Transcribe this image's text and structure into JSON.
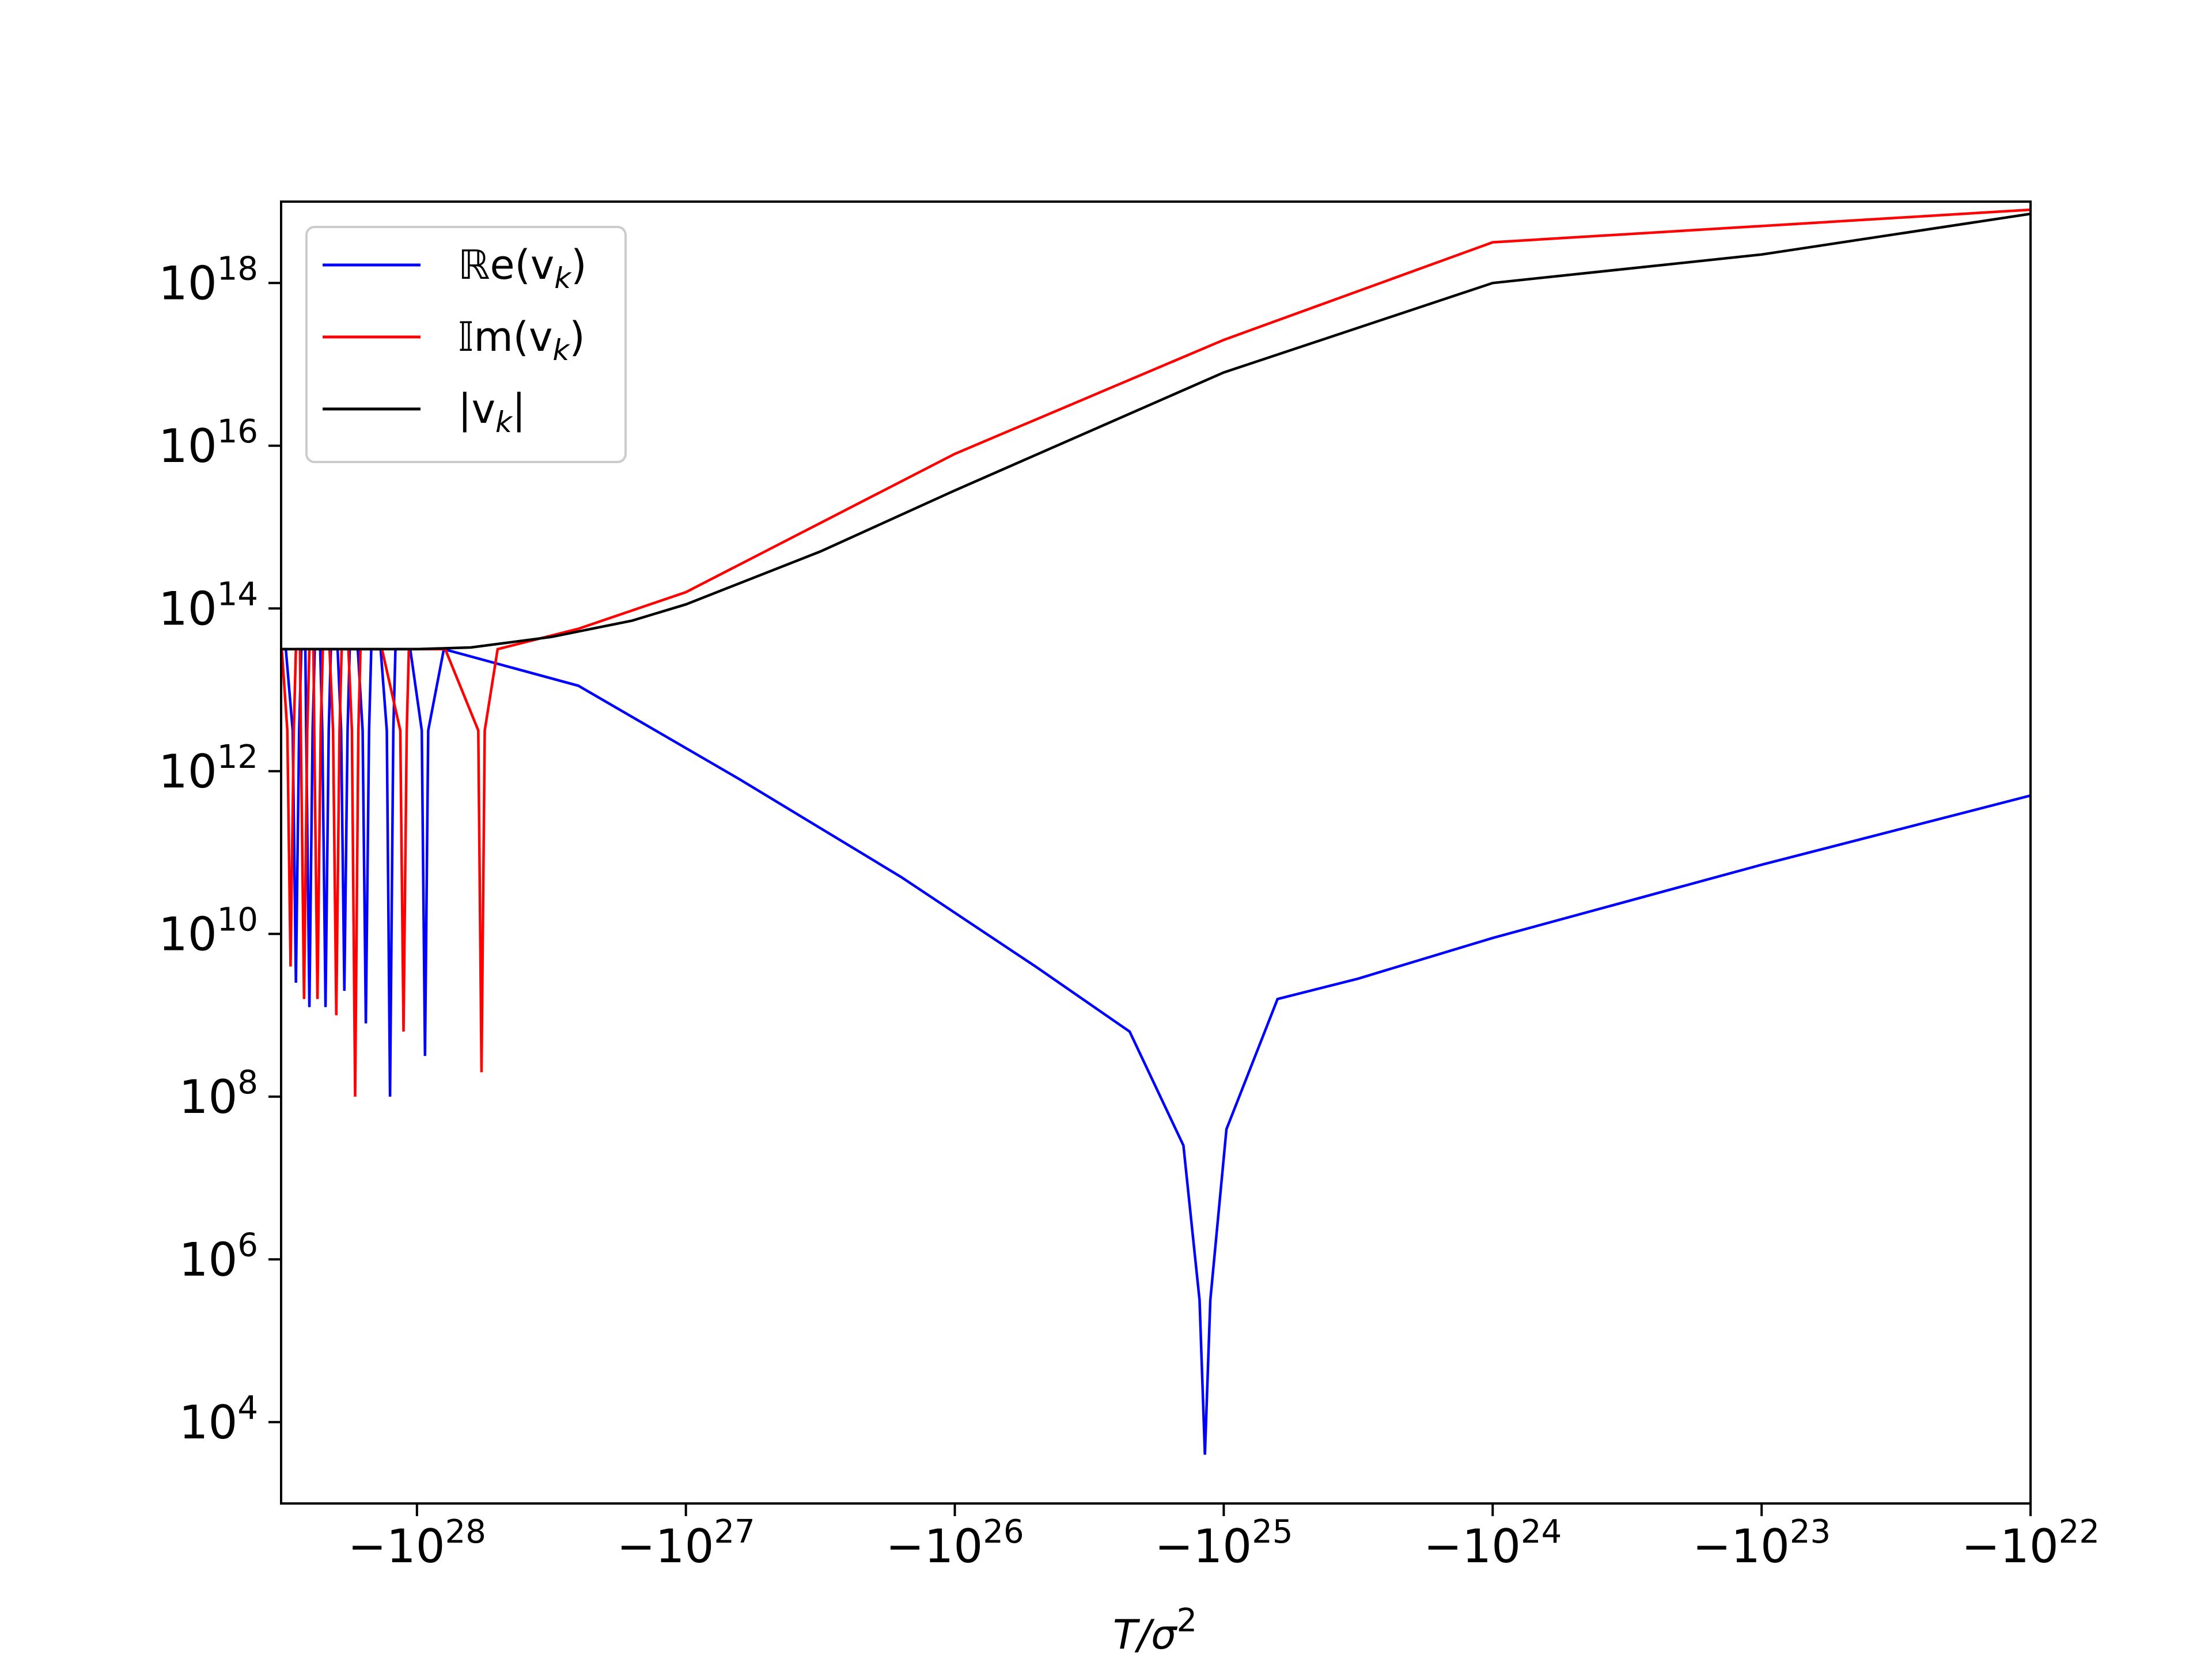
{
  "chart_data": {
    "type": "line",
    "xlabel": "T/σ²",
    "ylabel": "",
    "x_scale": "log",
    "x_axis_note": "T is negative; axis shows -10^n, reversed log magnitude",
    "x_range_abs": [
      3.2e+28,
      1e+22
    ],
    "y_scale": "log",
    "y_range": [
      1000.0,
      1e+19
    ],
    "grid": false,
    "legend_position": "upper left",
    "x_ticks": [
      {
        "exp": 28,
        "base": "−10",
        "sup": "28"
      },
      {
        "exp": 27,
        "base": "−10",
        "sup": "27"
      },
      {
        "exp": 26,
        "base": "−10",
        "sup": "26"
      },
      {
        "exp": 25,
        "base": "−10",
        "sup": "25"
      },
      {
        "exp": 24,
        "base": "−10",
        "sup": "24"
      },
      {
        "exp": 23,
        "base": "−10",
        "sup": "23"
      },
      {
        "exp": 22,
        "base": "−10",
        "sup": "22"
      }
    ],
    "y_ticks": [
      {
        "exp": 4,
        "base": "10",
        "sup": "4"
      },
      {
        "exp": 6,
        "base": "10",
        "sup": "6"
      },
      {
        "exp": 8,
        "base": "10",
        "sup": "8"
      },
      {
        "exp": 10,
        "base": "10",
        "sup": "10"
      },
      {
        "exp": 12,
        "base": "10",
        "sup": "12"
      },
      {
        "exp": 14,
        "base": "10",
        "sup": "14"
      },
      {
        "exp": 16,
        "base": "10",
        "sup": "16"
      },
      {
        "exp": 18,
        "base": "10",
        "sup": "18"
      }
    ],
    "series": [
      {
        "name": "ℝe(v_k)",
        "label_main": "ℝe(v",
        "label_sub": "k",
        "label_close": ")",
        "color": "#0000ff",
        "plateau_log10": 13.5,
        "oscillation_zeros_log10_abs_T": [
          28.45,
          28.4,
          28.34,
          28.27,
          28.19,
          28.1,
          27.97
        ],
        "zero_min_log10_y": [
          9.4,
          9.1,
          9.1,
          9.3,
          8.9,
          8.0,
          8.5
        ],
        "decay": [
          [
            27.9,
            13.5
          ],
          [
            27.4,
            13.05
          ],
          [
            26.8,
            11.9
          ],
          [
            26.2,
            10.7
          ],
          [
            25.7,
            9.6
          ],
          [
            25.35,
            8.8
          ]
        ],
        "zero_crossing_log10_abs_T": 25.07,
        "zero_crossing_log10_y": 3.6,
        "growth": [
          [
            24.8,
            9.2
          ],
          [
            24.5,
            9.45
          ],
          [
            24.0,
            9.95
          ],
          [
            23.0,
            10.85
          ],
          [
            22.0,
            11.7
          ]
        ]
      },
      {
        "name": "𝕀m(v_k)",
        "label_main": "𝕀m(v",
        "label_sub": "k",
        "label_close": ")",
        "color": "#ff0000",
        "plateau_log10": 13.5,
        "oscillation_zeros_log10_abs_T": [
          28.47,
          28.42,
          28.37,
          28.3,
          28.23,
          28.05,
          27.76
        ],
        "zero_min_log10_y": [
          9.6,
          9.2,
          9.2,
          9.0,
          8.0,
          8.8,
          8.3
        ],
        "rising": [
          [
            27.7,
            13.5
          ],
          [
            27.4,
            13.75
          ],
          [
            27.0,
            14.2
          ],
          [
            26.0,
            15.9
          ],
          [
            25.0,
            17.3
          ],
          [
            24.0,
            18.5
          ],
          [
            22.0,
            18.9
          ]
        ]
      },
      {
        "name": "|v_k|",
        "label_main": "|v",
        "label_sub": "k",
        "label_close": "|",
        "color": "#000000",
        "points_log10": [
          [
            28.52,
            13.5
          ],
          [
            28.0,
            13.5
          ],
          [
            27.8,
            13.52
          ],
          [
            27.5,
            13.65
          ],
          [
            27.2,
            13.85
          ],
          [
            27.0,
            14.05
          ],
          [
            26.5,
            14.7
          ],
          [
            26.0,
            15.45
          ],
          [
            25.0,
            16.9
          ],
          [
            24.0,
            18.0
          ],
          [
            23.0,
            18.35
          ],
          [
            22.0,
            18.85
          ]
        ]
      }
    ]
  }
}
